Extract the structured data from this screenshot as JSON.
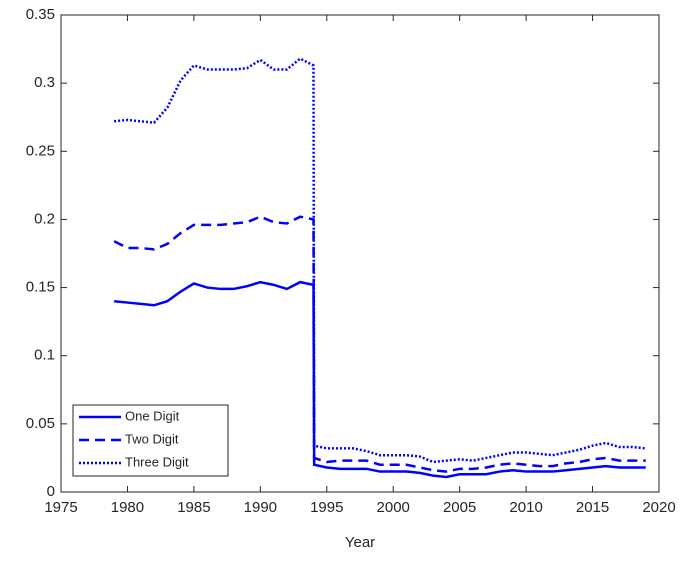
{
  "chart_data": {
    "type": "line",
    "x_label": "Year",
    "x": [
      1979,
      1980,
      1981,
      1982,
      1983,
      1984,
      1985,
      1986,
      1987,
      1988,
      1989,
      1990,
      1991,
      1992,
      1993,
      1994,
      1994.05,
      1995,
      1996,
      1997,
      1998,
      1999,
      2000,
      2001,
      2002,
      2003,
      2004,
      2005,
      2006,
      2007,
      2008,
      2009,
      2010,
      2011,
      2012,
      2013,
      2014,
      2015,
      2016,
      2017,
      2018,
      2019
    ],
    "series": [
      {
        "name": "One Digit",
        "color": "#0000ff",
        "style": "solid",
        "values": [
          0.14,
          0.139,
          0.138,
          0.137,
          0.14,
          0.147,
          0.153,
          0.15,
          0.149,
          0.149,
          0.151,
          0.154,
          0.152,
          0.149,
          0.154,
          0.152,
          0.02,
          0.018,
          0.017,
          0.017,
          0.017,
          0.015,
          0.015,
          0.015,
          0.014,
          0.012,
          0.011,
          0.013,
          0.013,
          0.013,
          0.015,
          0.016,
          0.015,
          0.015,
          0.015,
          0.016,
          0.017,
          0.018,
          0.019,
          0.018,
          0.018,
          0.018
        ]
      },
      {
        "name": "Two Digit",
        "color": "#0000ff",
        "style": "dashed",
        "values": [
          0.184,
          0.179,
          0.179,
          0.178,
          0.182,
          0.19,
          0.196,
          0.196,
          0.196,
          0.197,
          0.198,
          0.202,
          0.198,
          0.197,
          0.202,
          0.2,
          0.025,
          0.022,
          0.023,
          0.023,
          0.023,
          0.02,
          0.02,
          0.02,
          0.018,
          0.016,
          0.015,
          0.017,
          0.017,
          0.018,
          0.02,
          0.021,
          0.02,
          0.019,
          0.019,
          0.021,
          0.022,
          0.024,
          0.025,
          0.023,
          0.023,
          0.023
        ]
      },
      {
        "name": "Three Digit",
        "color": "#0000ff",
        "style": "dotted",
        "values": [
          0.272,
          0.273,
          0.272,
          0.271,
          0.282,
          0.302,
          0.313,
          0.31,
          0.31,
          0.31,
          0.311,
          0.317,
          0.31,
          0.31,
          0.318,
          0.313,
          0.034,
          0.032,
          0.032,
          0.032,
          0.03,
          0.027,
          0.027,
          0.027,
          0.026,
          0.022,
          0.023,
          0.024,
          0.023,
          0.025,
          0.027,
          0.029,
          0.029,
          0.028,
          0.027,
          0.029,
          0.031,
          0.034,
          0.036,
          0.033,
          0.033,
          0.032
        ]
      }
    ],
    "xlim": [
      1975,
      2020
    ],
    "xticks": [
      1975,
      1980,
      1985,
      1990,
      1995,
      2000,
      2005,
      2010,
      2015,
      2020
    ],
    "ylim": [
      0,
      0.35
    ],
    "yticks": [
      0,
      0.05,
      0.1,
      0.15,
      0.2,
      0.25,
      0.3,
      0.35
    ],
    "grid": false,
    "legend": "lower-left"
  }
}
